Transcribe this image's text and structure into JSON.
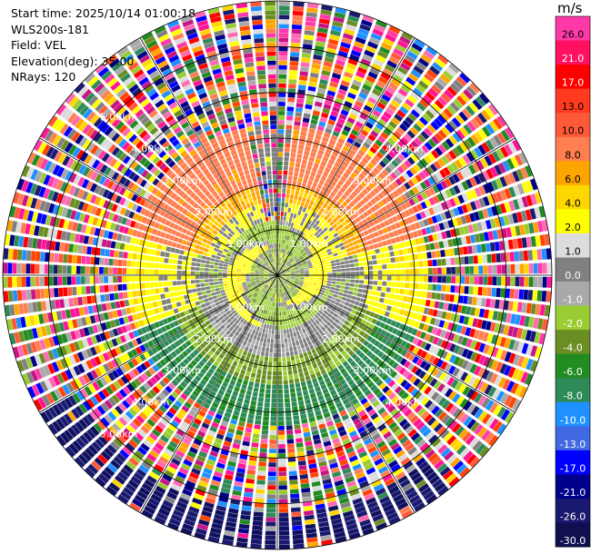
{
  "header": {
    "start_time": "Start time: 2025/10/14 01:00:18",
    "instrument": "WLS200s-181",
    "field": "Field: VEL",
    "elevation": "Elevation(deg): 35.00",
    "nrays": "NRays: 120"
  },
  "chart_data": {
    "type": "heatmap",
    "subtype": "polar PPI (plan position indicator) radial velocity scan",
    "field": "VEL",
    "elevation_deg": 35.0,
    "n_rays": 120,
    "max_range_km": 6.0,
    "range_rings_km": [
      1,
      2,
      3,
      4,
      5,
      6
    ],
    "range_ring_labels": [
      "1.00km",
      "2.00km",
      "3.00km",
      "4.00km",
      "5.00km",
      "6.00km"
    ],
    "spokes_deg": [
      0,
      30,
      60,
      90,
      120,
      150,
      180,
      210,
      240,
      270,
      300,
      330
    ],
    "colorbar": {
      "unit": "m/s",
      "ticks": [
        "26.0",
        "21.0",
        "17.0",
        "13.0",
        "10.0",
        "8.0",
        "6.0",
        "4.0",
        "2.0",
        "1.0",
        "0.0",
        "-1.0",
        "-2.0",
        "-4.0",
        "-6.0",
        "-8.0",
        "-10.0",
        "-13.0",
        "-17.0",
        "-21.0",
        "-26.0",
        "-30.0"
      ],
      "colors": [
        "#ff3aa8",
        "#ff1060",
        "#ff0000",
        "#ff3a1e",
        "#ff5a38",
        "#ff7f50",
        "#ffa500",
        "#ffd700",
        "#ffff00",
        "#dcdcdc",
        "#808080",
        "#a9a9a9",
        "#9acd32",
        "#6b8e23",
        "#228b22",
        "#2e8b57",
        "#1e90ff",
        "#4169e1",
        "#0000ff",
        "#00008b",
        "#191970",
        "#101050"
      ]
    },
    "velocity_pattern": {
      "inner_core_km": [
        0,
        1.2
      ],
      "core_description": "grey / green / yellow swirl of near-zero velocities",
      "middle_band_km": [
        1.2,
        3.3
      ],
      "north_half": "orange-salmon (+6 to +10 m/s) fading to yellow",
      "south_half": "grey to green (-2 to -8 m/s)",
      "outer_band_km": [
        3.3,
        6.0
      ],
      "outer_description": "noisy aliased returns across full colour range",
      "far_south_km": [
        5.2,
        6.0
      ],
      "far_south_description": "dark navy (-26 to -30 m/s)"
    }
  }
}
